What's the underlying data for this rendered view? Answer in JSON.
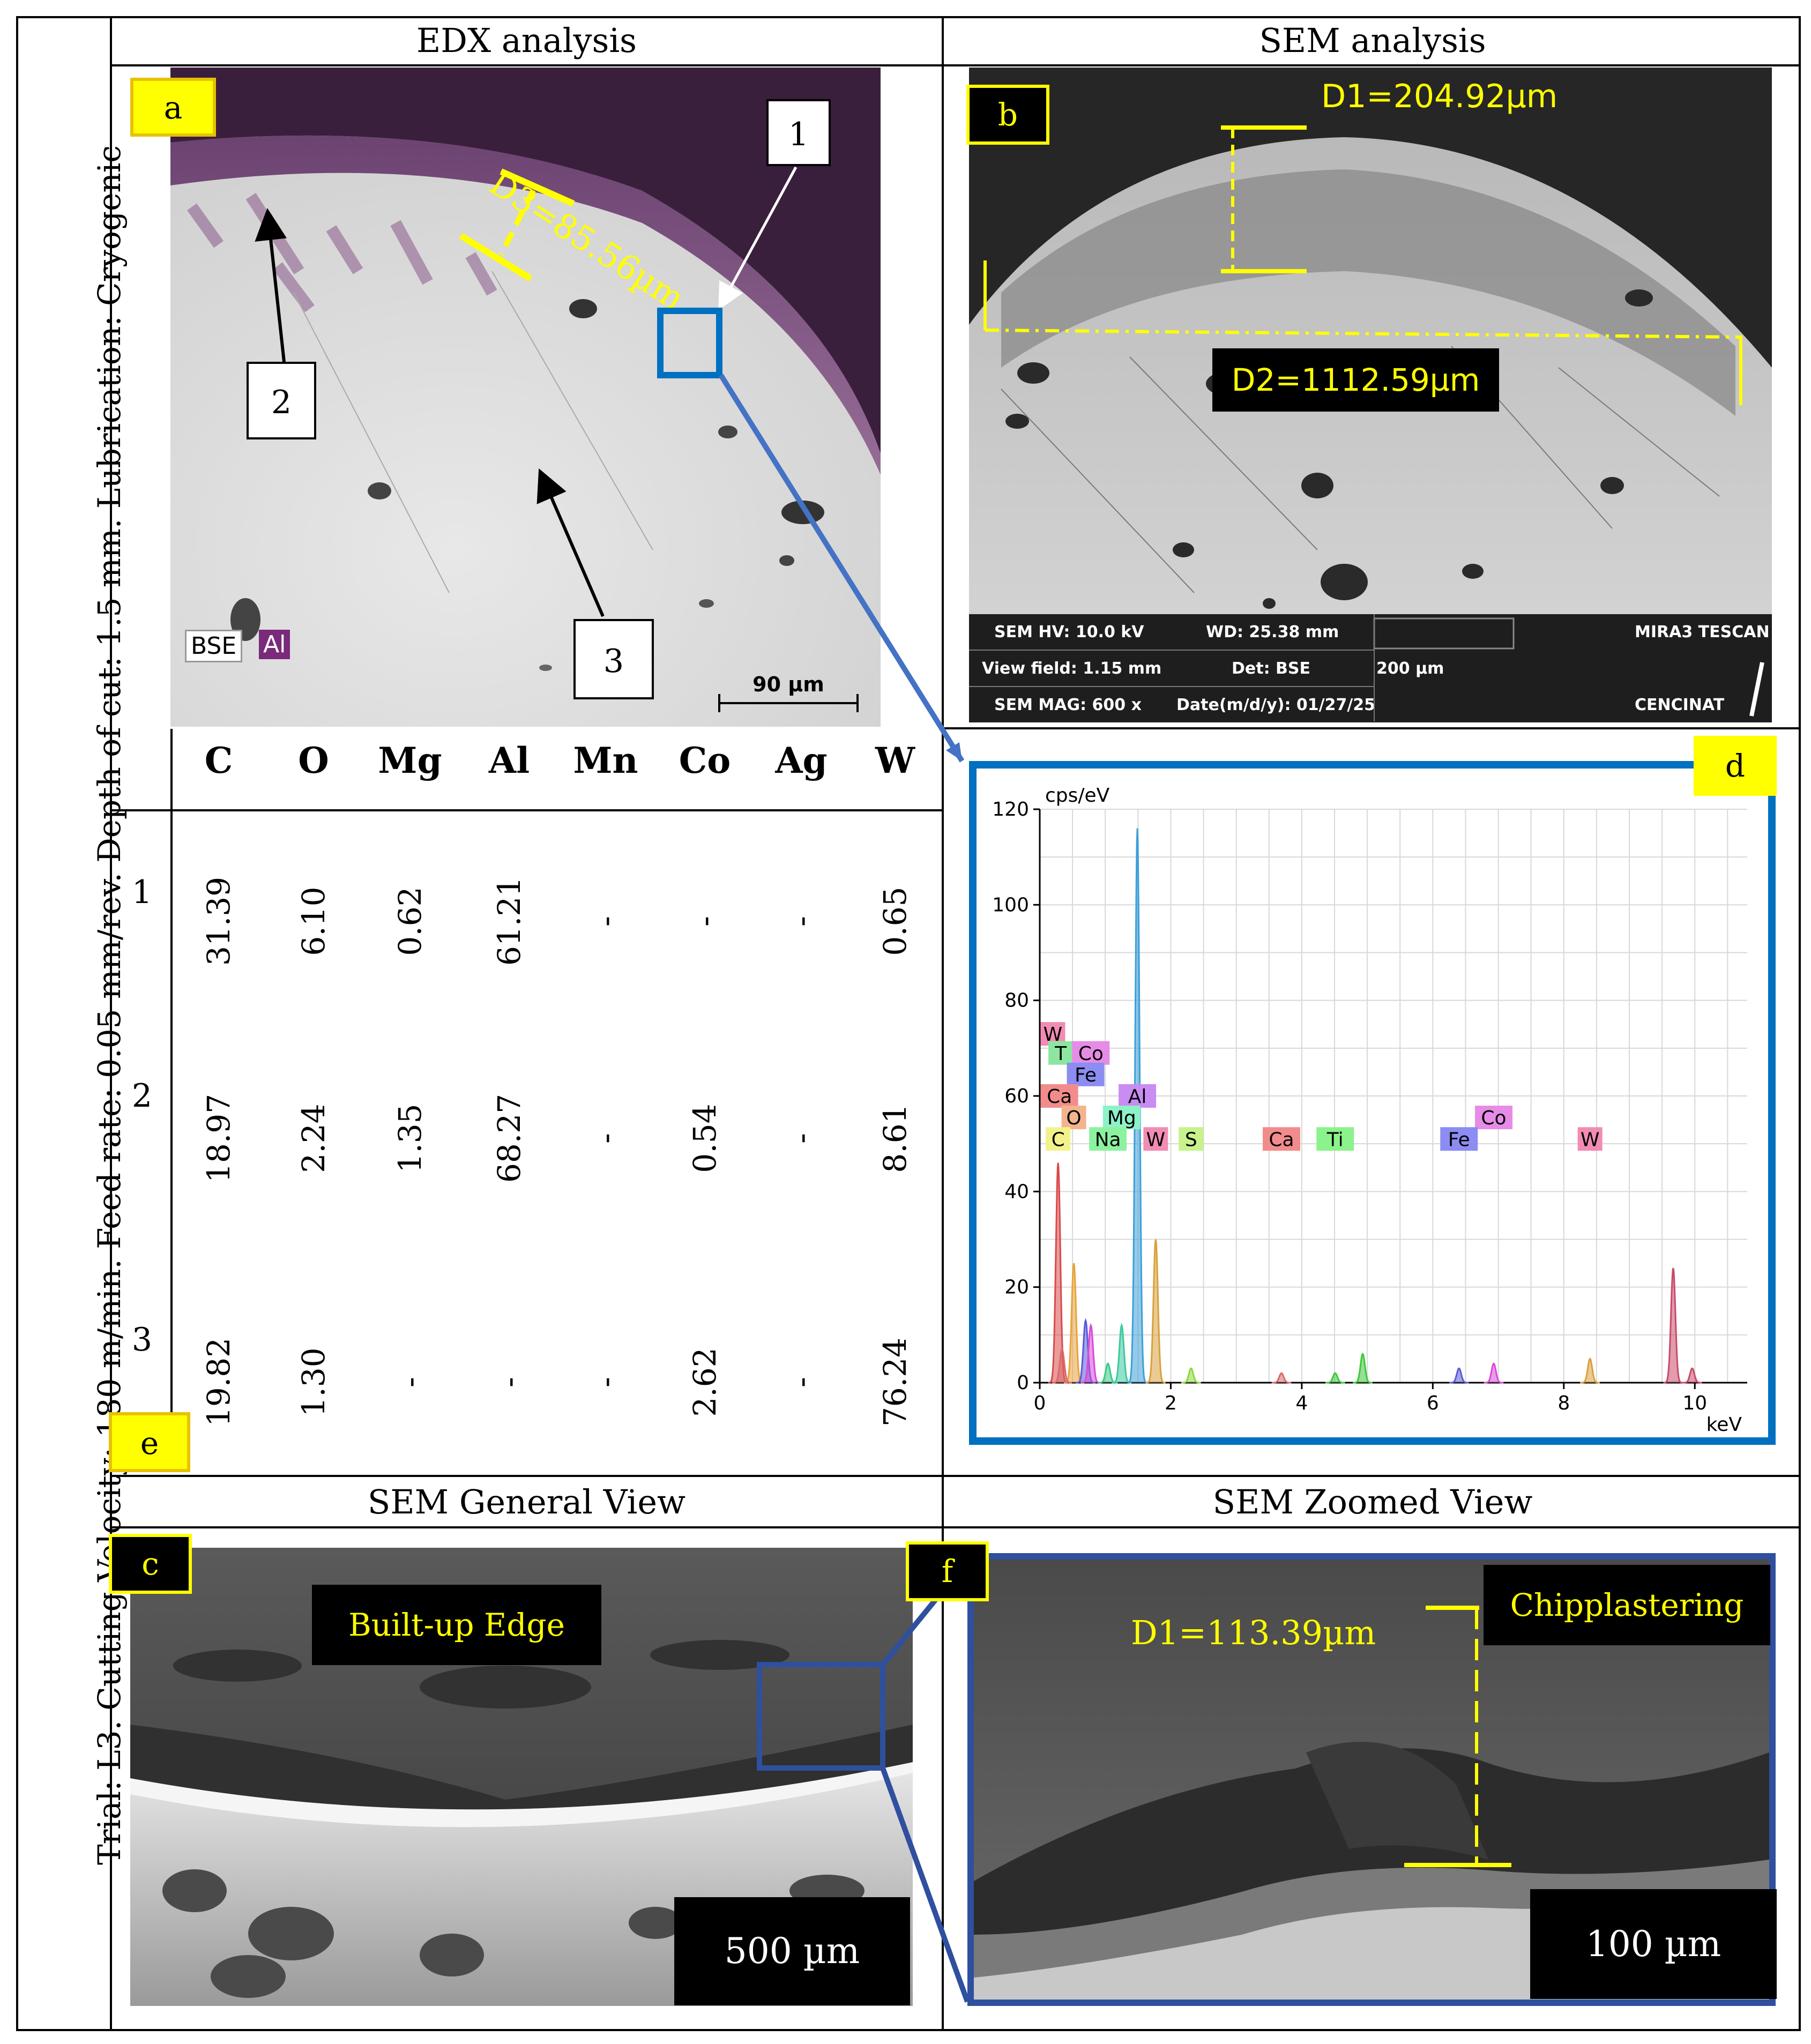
{
  "side_label": "Trial: L3. Cutting Velocity: 180 m/min. Feed rate: 0.05 mm/rev. Depth of cut: 1.5 mm. Lubrication: Cryogenic",
  "headers": {
    "edx": "EDX analysis",
    "sem": "SEM analysis",
    "general": "SEM General View",
    "zoomed": "SEM Zoomed View"
  },
  "panel_tags": {
    "a": "a",
    "b": "b",
    "c": "c",
    "d": "d",
    "e": "e",
    "f": "f"
  },
  "panel_a": {
    "d3_label": "D3=85.56µm",
    "markers": [
      "1",
      "2",
      "3"
    ],
    "bse": "BSE",
    "al": "Al",
    "scale": "90 µm"
  },
  "panel_b": {
    "d1_label": "D1=204.92µm",
    "d2_label": "D2=1112.59µm",
    "info": {
      "hv": "SEM HV: 10.0 kV",
      "wd": "WD: 25.38 mm",
      "brand": "MIRA3 TESCAN",
      "vf": "View field: 1.15 mm",
      "det": "Det: BSE",
      "scale": "200 µm",
      "mag": "SEM MAG: 600 x",
      "date": "Date(m/d/y): 01/27/25",
      "lab": "CENCINAT"
    }
  },
  "table": {
    "elements": [
      "C",
      "O",
      "Mg",
      "Al",
      "Mn",
      "Co",
      "Ag",
      "W"
    ],
    "rows": [
      {
        "label": "1",
        "values": [
          "31.39",
          "6.10",
          "0.62",
          "61.21",
          "-",
          "-",
          "-",
          "0.65"
        ]
      },
      {
        "label": "2",
        "values": [
          "18.97",
          "2.24",
          "1.35",
          "68.27",
          "-",
          "0.54",
          "-",
          "8.61"
        ]
      },
      {
        "label": "3",
        "values": [
          "19.82",
          "1.30",
          "-",
          "-",
          "-",
          "2.62",
          "-",
          "76.24"
        ]
      }
    ]
  },
  "panel_c": {
    "bue": "Built-up Edge",
    "scale": "500 µm"
  },
  "panel_f": {
    "d1": "D1=113.39µm",
    "chip": "Chipplastering",
    "scale": "100 µm"
  },
  "chart_data": {
    "type": "line",
    "ylabel": "cps/eV",
    "xlabel": "keV",
    "xlim": [
      0,
      10.8
    ],
    "ylim": [
      0,
      120
    ],
    "xticks": [
      0,
      2,
      4,
      6,
      8,
      10
    ],
    "yticks": [
      0,
      20,
      40,
      60,
      80,
      100,
      120
    ],
    "grid": true,
    "peaks": [
      {
        "element": "C",
        "energy": 0.28,
        "height": 46,
        "color": "#d94a4a"
      },
      {
        "element": "O",
        "energy": 0.52,
        "height": 25,
        "color": "#e8a33c"
      },
      {
        "element": "Ca",
        "energy": 0.34,
        "height": 7,
        "color": "#d96a6a"
      },
      {
        "element": "Fe",
        "energy": 0.7,
        "height": 13,
        "color": "#5a5ad9"
      },
      {
        "element": "Co",
        "energy": 0.78,
        "height": 12,
        "color": "#d94ad9"
      },
      {
        "element": "Na",
        "energy": 1.04,
        "height": 4,
        "color": "#3cc98a"
      },
      {
        "element": "Mg",
        "energy": 1.25,
        "height": 12,
        "color": "#3cc9a0"
      },
      {
        "element": "Al",
        "energy": 1.49,
        "height": 116,
        "color": "#3ca0d9"
      },
      {
        "element": "W",
        "energy": 1.77,
        "height": 30,
        "color": "#d9a03c"
      },
      {
        "element": "S",
        "energy": 2.31,
        "height": 3,
        "color": "#8ad93c"
      },
      {
        "element": "Ca",
        "energy": 3.69,
        "height": 2,
        "color": "#d96a6a"
      },
      {
        "element": "Ti",
        "energy": 4.51,
        "height": 2,
        "color": "#3cc93c"
      },
      {
        "element": "Ti",
        "energy": 4.93,
        "height": 6,
        "color": "#3cc93c"
      },
      {
        "element": "Fe",
        "energy": 6.4,
        "height": 3,
        "color": "#5a5ad9"
      },
      {
        "element": "Co",
        "energy": 6.93,
        "height": 4,
        "color": "#d94ad9"
      },
      {
        "element": "W",
        "energy": 8.4,
        "height": 5,
        "color": "#d9a03c"
      },
      {
        "element": "W",
        "energy": 9.67,
        "height": 24,
        "color": "#c94a6a"
      },
      {
        "element": "W",
        "energy": 9.96,
        "height": 3,
        "color": "#c94a6a"
      }
    ],
    "labels": [
      {
        "text": "W",
        "energy": 0.2,
        "y": 73,
        "color": "#f28cb4"
      },
      {
        "text": "T",
        "energy": 0.32,
        "y": 69,
        "color": "#8ce6a0"
      },
      {
        "text": "Co",
        "energy": 0.78,
        "y": 69,
        "color": "#e68ce6"
      },
      {
        "text": "Fe",
        "energy": 0.7,
        "y": 64.5,
        "color": "#8c8cf2"
      },
      {
        "text": "Ca",
        "energy": 0.3,
        "y": 60,
        "color": "#f28c8c"
      },
      {
        "text": "Al",
        "energy": 1.49,
        "y": 60,
        "color": "#c88cf2"
      },
      {
        "text": "O",
        "energy": 0.52,
        "y": 55.5,
        "color": "#f2b48c"
      },
      {
        "text": "Mg",
        "energy": 1.25,
        "y": 55.5,
        "color": "#8cf2c8"
      },
      {
        "text": "Co",
        "energy": 6.93,
        "y": 55.5,
        "color": "#e68ce6"
      },
      {
        "text": "C",
        "energy": 0.28,
        "y": 51,
        "color": "#f2f28c"
      },
      {
        "text": "Na",
        "energy": 1.04,
        "y": 51,
        "color": "#8cf2a0"
      },
      {
        "text": "W",
        "energy": 1.77,
        "y": 51,
        "color": "#f28cb4"
      },
      {
        "text": "S",
        "energy": 2.31,
        "y": 51,
        "color": "#c8f28c"
      },
      {
        "text": "Ca",
        "energy": 3.69,
        "y": 51,
        "color": "#f28c8c"
      },
      {
        "text": "Ti",
        "energy": 4.51,
        "y": 51,
        "color": "#8cf28c"
      },
      {
        "text": "Fe",
        "energy": 6.4,
        "y": 51,
        "color": "#8c8cf2"
      },
      {
        "text": "W",
        "energy": 8.4,
        "y": 51,
        "color": "#f28cb4"
      }
    ]
  },
  "colors": {
    "accent_blue": "#0070c0",
    "dark_blue": "#2f4f9f",
    "yellow": "#ffff00",
    "purple": "#5a2a5a"
  }
}
